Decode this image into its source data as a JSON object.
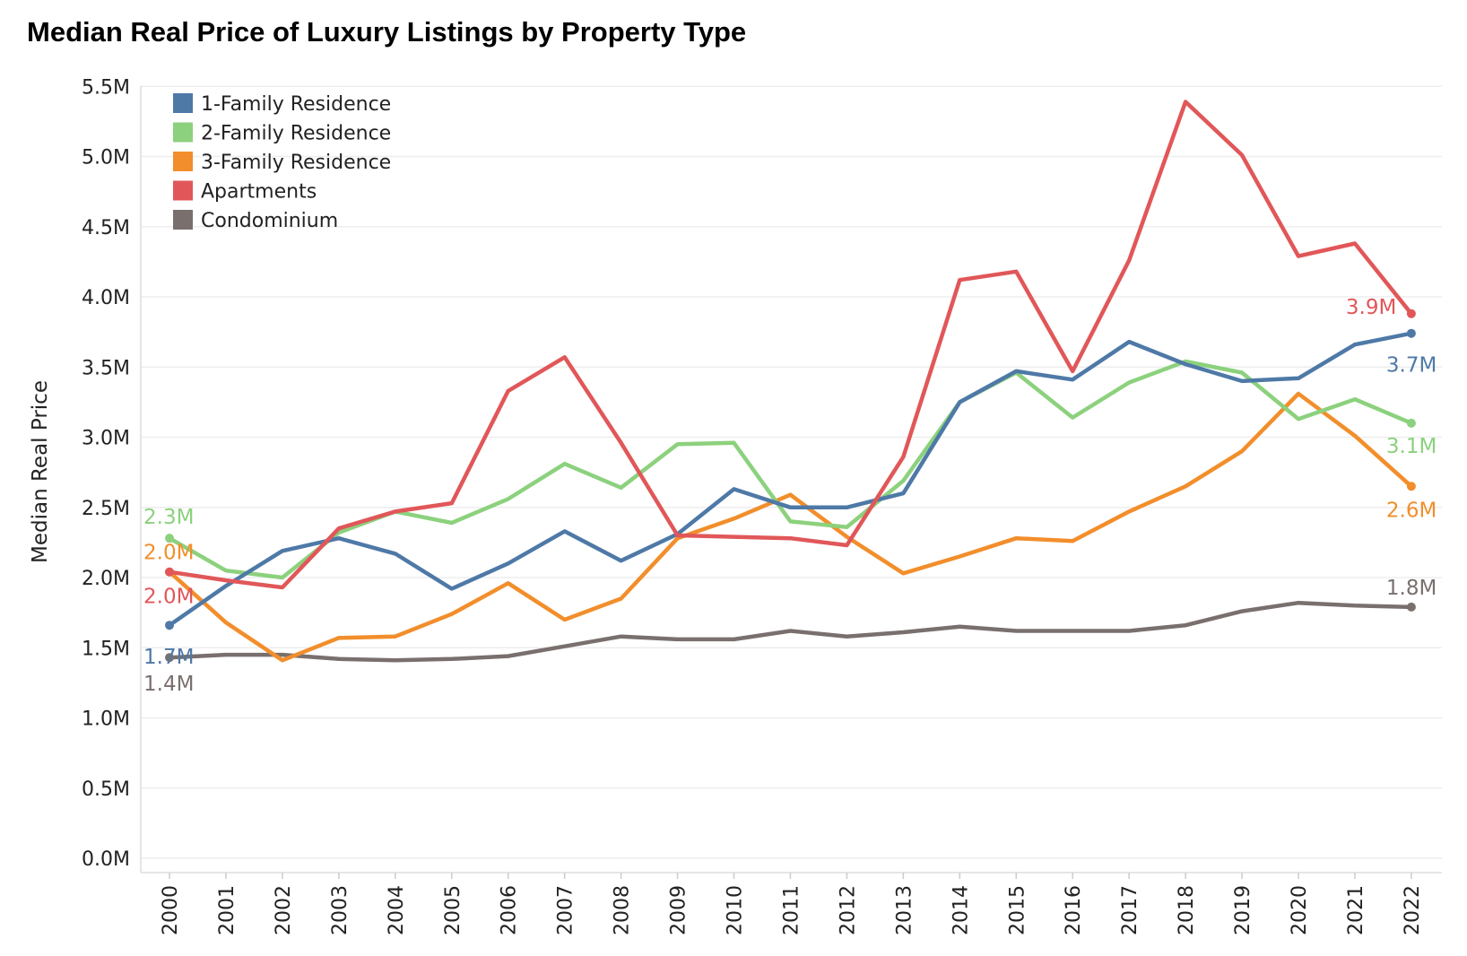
{
  "chart_data": {
    "type": "line",
    "title": "Median Real Price of Luxury Listings by Property Type",
    "xlabel": "",
    "ylabel": "Median Real Price",
    "ylim": [
      0,
      5.6
    ],
    "y_ticks": [
      {
        "v": 0.0,
        "label": "0.0M"
      },
      {
        "v": 0.5,
        "label": "0.5M"
      },
      {
        "v": 1.0,
        "label": "1.0M"
      },
      {
        "v": 1.5,
        "label": "1.5M"
      },
      {
        "v": 2.0,
        "label": "2.0M"
      },
      {
        "v": 2.5,
        "label": "2.5M"
      },
      {
        "v": 3.0,
        "label": "3.0M"
      },
      {
        "v": 3.5,
        "label": "3.5M"
      },
      {
        "v": 4.0,
        "label": "4.0M"
      },
      {
        "v": 4.5,
        "label": "4.5M"
      },
      {
        "v": 5.0,
        "label": "5.0M"
      },
      {
        "v": 5.5,
        "label": "5.5M"
      }
    ],
    "grid": true,
    "legend_position": "top-left",
    "x": [
      "2000",
      "2001",
      "2002",
      "2003",
      "2004",
      "2005",
      "2006",
      "2007",
      "2008",
      "2009",
      "2010",
      "2011",
      "2012",
      "2013",
      "2014",
      "2015",
      "2016",
      "2017",
      "2018",
      "2019",
      "2020",
      "2021",
      "2022"
    ],
    "series": [
      {
        "name": "1-Family Residence",
        "color": "#4e79a7",
        "values": [
          1.66,
          1.94,
          2.19,
          2.28,
          2.17,
          1.92,
          2.1,
          2.33,
          2.12,
          2.31,
          2.63,
          2.5,
          2.5,
          2.6,
          3.25,
          3.47,
          3.41,
          3.68,
          3.52,
          3.4,
          3.42,
          3.66,
          3.74
        ],
        "start_label": "1.7M",
        "end_label": "3.7M"
      },
      {
        "name": "2-Family Residence",
        "color": "#8cd17d",
        "values": [
          2.28,
          2.05,
          2.0,
          2.32,
          2.47,
          2.39,
          2.56,
          2.81,
          2.64,
          2.95,
          2.96,
          2.4,
          2.36,
          2.69,
          3.25,
          3.46,
          3.14,
          3.39,
          3.54,
          3.46,
          3.13,
          3.27,
          3.1
        ],
        "start_label": "2.3M",
        "end_label": "3.1M"
      },
      {
        "name": "3-Family Residence",
        "color": "#f28e2b",
        "values": [
          2.04,
          1.68,
          1.41,
          1.57,
          1.58,
          1.74,
          1.96,
          1.7,
          1.85,
          2.28,
          2.42,
          2.59,
          2.29,
          2.03,
          2.15,
          2.28,
          2.26,
          2.47,
          2.65,
          2.9,
          3.31,
          3.01,
          2.65
        ],
        "start_label": "2.0M",
        "end_label": "2.6M"
      },
      {
        "name": "Apartments",
        "color": "#e15759",
        "values": [
          2.04,
          1.98,
          1.93,
          2.35,
          2.47,
          2.53,
          3.33,
          3.57,
          2.96,
          2.3,
          2.29,
          2.28,
          2.23,
          2.86,
          4.12,
          4.18,
          3.47,
          4.26,
          5.39,
          5.01,
          4.29,
          4.38,
          3.88
        ],
        "start_label": "2.0M",
        "end_label": "3.9M"
      },
      {
        "name": "Condominium",
        "color": "#79706e",
        "values": [
          1.43,
          1.45,
          1.45,
          1.42,
          1.41,
          1.42,
          1.44,
          1.51,
          1.58,
          1.56,
          1.56,
          1.62,
          1.58,
          1.61,
          1.65,
          1.62,
          1.62,
          1.62,
          1.66,
          1.76,
          1.82,
          1.8,
          1.79
        ],
        "start_label": "1.4M",
        "end_label": "1.8M"
      }
    ]
  }
}
